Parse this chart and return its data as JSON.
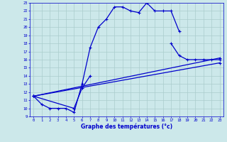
{
  "xlabel": "Graphe des températures (°c)",
  "bg_color": "#cce8ea",
  "grid_color": "#aacccc",
  "line_color": "#0000cc",
  "xlim": [
    -0.5,
    23.5
  ],
  "ylim": [
    9,
    23
  ],
  "yticks": [
    9,
    10,
    11,
    12,
    13,
    14,
    15,
    16,
    17,
    18,
    19,
    20,
    21,
    22,
    23
  ],
  "xticks": [
    0,
    1,
    2,
    3,
    4,
    5,
    6,
    7,
    8,
    9,
    10,
    11,
    12,
    13,
    14,
    15,
    16,
    17,
    18,
    19,
    20,
    21,
    22,
    23
  ],
  "curve1_x": [
    0,
    1,
    2,
    3,
    4,
    5,
    6,
    7,
    8,
    9,
    10,
    11,
    12,
    13,
    14,
    15,
    16,
    17,
    18
  ],
  "curve1_y": [
    11.5,
    10.5,
    10.0,
    10.0,
    10.0,
    9.5,
    13.0,
    17.5,
    20.0,
    21.0,
    22.5,
    22.5,
    22.0,
    21.8,
    23.0,
    22.0,
    22.0,
    22.0,
    19.5
  ],
  "curve2_x": [
    0,
    5,
    6,
    7,
    17,
    18,
    19,
    20,
    21,
    22,
    23
  ],
  "curve2_y": [
    11.5,
    10.0,
    12.5,
    14.0,
    18.0,
    16.5,
    16.0,
    16.0,
    16.0,
    16.0,
    16.0
  ],
  "curve3_x": [
    0,
    23
  ],
  "curve3_y": [
    11.5,
    16.2
  ],
  "curve4_x": [
    0,
    23
  ],
  "curve4_y": [
    11.5,
    15.6
  ]
}
